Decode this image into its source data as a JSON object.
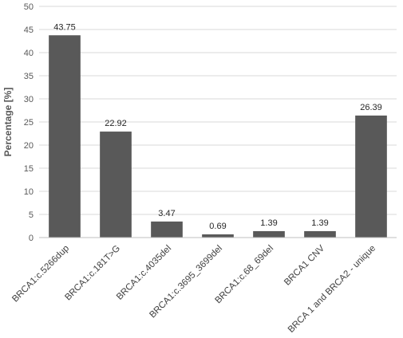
{
  "chart_data": {
    "type": "bar",
    "title": "",
    "xlabel": "",
    "ylabel": "Percentage [%]",
    "ylim": [
      0,
      50
    ],
    "yticks": [
      0,
      5,
      10,
      15,
      20,
      25,
      30,
      35,
      40,
      45,
      50
    ],
    "grid": true,
    "bar_color": "#595959",
    "categories": [
      "BRCA1:c.5266dup",
      "BRCA1:c.181T>G",
      "BRCA1:c.4035del",
      "BRCA1:c.3695_3699del",
      "BRCA1:c.68_69del",
      "BRCA1 CNV",
      "BRCA 1 and BRCA2 - unique"
    ],
    "values": [
      43.75,
      22.92,
      3.47,
      0.69,
      1.39,
      1.39,
      26.39
    ],
    "data_labels": [
      "43.75",
      "22.92",
      "3.47",
      "0.69",
      "1.39",
      "1.39",
      "26.39"
    ]
  }
}
